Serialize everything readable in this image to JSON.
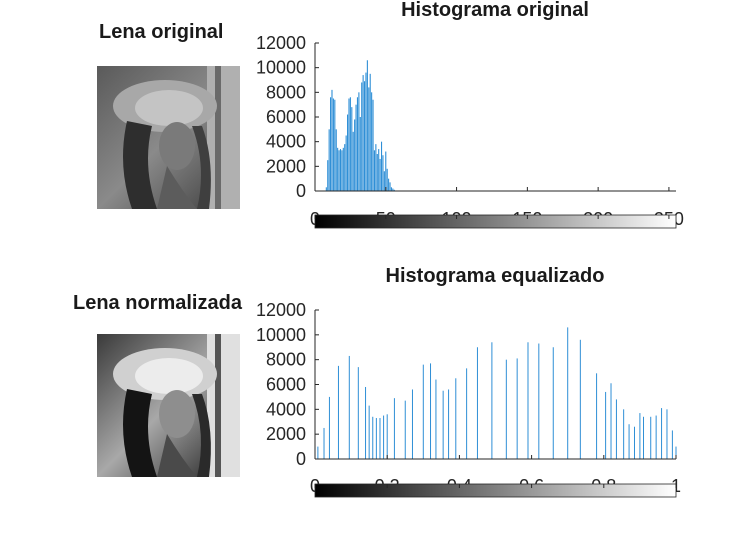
{
  "colors": {
    "bar": "#2f8fd6",
    "axis": "#262626"
  },
  "images": [
    {
      "title": "Lena original",
      "name": "lena-original"
    },
    {
      "title": "Lena normalizada",
      "name": "lena-normalizada"
    }
  ],
  "chart_data": [
    {
      "type": "bar",
      "title": "Histograma original",
      "xlabel": "",
      "ylabel": "",
      "xlim": [
        0,
        255
      ],
      "ylim": [
        0,
        12000
      ],
      "xticks": [
        "0",
        "50",
        "100",
        "150",
        "200",
        "250"
      ],
      "yticks": [
        "0",
        "2000",
        "4000",
        "6000",
        "8000",
        "10000",
        "12000"
      ],
      "colorbar": true,
      "x": [
        8,
        9,
        10,
        11,
        12,
        13,
        14,
        15,
        16,
        17,
        18,
        19,
        20,
        21,
        22,
        23,
        24,
        25,
        26,
        27,
        28,
        29,
        30,
        31,
        32,
        33,
        34,
        35,
        36,
        37,
        38,
        39,
        40,
        41,
        42,
        43,
        44,
        45,
        46,
        47,
        48,
        49,
        50,
        51,
        52,
        53,
        54,
        55,
        56
      ],
      "values": [
        300,
        2500,
        5000,
        7600,
        8200,
        7500,
        7400,
        5000,
        3500,
        3300,
        3400,
        3300,
        3500,
        3800,
        4500,
        6200,
        7500,
        7600,
        6800,
        4800,
        5800,
        7000,
        7600,
        8000,
        6000,
        8800,
        9400,
        8900,
        9600,
        10600,
        8400,
        9500,
        8000,
        7400,
        3300,
        3800,
        3000,
        3400,
        2600,
        4000,
        2900,
        1600,
        3200,
        1800,
        1000,
        700,
        300,
        200,
        100
      ]
    },
    {
      "type": "bar",
      "title": "Histograma equalizado",
      "xlabel": "",
      "ylabel": "",
      "xlim": [
        0,
        1
      ],
      "ylim": [
        0,
        12000
      ],
      "xticks": [
        "0",
        "0.2",
        "0.4",
        "0.6",
        "0.8",
        "1"
      ],
      "yticks": [
        "0",
        "2000",
        "4000",
        "6000",
        "8000",
        "10000",
        "12000"
      ],
      "colorbar": true,
      "x": [
        0.008,
        0.025,
        0.04,
        0.065,
        0.095,
        0.12,
        0.14,
        0.15,
        0.16,
        0.17,
        0.18,
        0.19,
        0.2,
        0.22,
        0.25,
        0.27,
        0.3,
        0.32,
        0.335,
        0.355,
        0.37,
        0.39,
        0.42,
        0.45,
        0.49,
        0.53,
        0.56,
        0.59,
        0.62,
        0.66,
        0.7,
        0.735,
        0.78,
        0.805,
        0.82,
        0.835,
        0.855,
        0.87,
        0.885,
        0.9,
        0.91,
        0.93,
        0.945,
        0.96,
        0.975,
        0.99,
        1.0
      ],
      "values": [
        1000,
        2500,
        5000,
        7500,
        8300,
        7400,
        5800,
        4300,
        3400,
        3300,
        3300,
        3500,
        3600,
        4900,
        4700,
        5600,
        7600,
        7700,
        6400,
        5500,
        5600,
        6500,
        7300,
        9000,
        9400,
        8000,
        8100,
        9400,
        9300,
        9000,
        10600,
        9600,
        6900,
        5400,
        6100,
        4800,
        4000,
        2800,
        2600,
        3700,
        3400,
        3400,
        3500,
        4100,
        4000,
        2300,
        1000
      ]
    }
  ]
}
